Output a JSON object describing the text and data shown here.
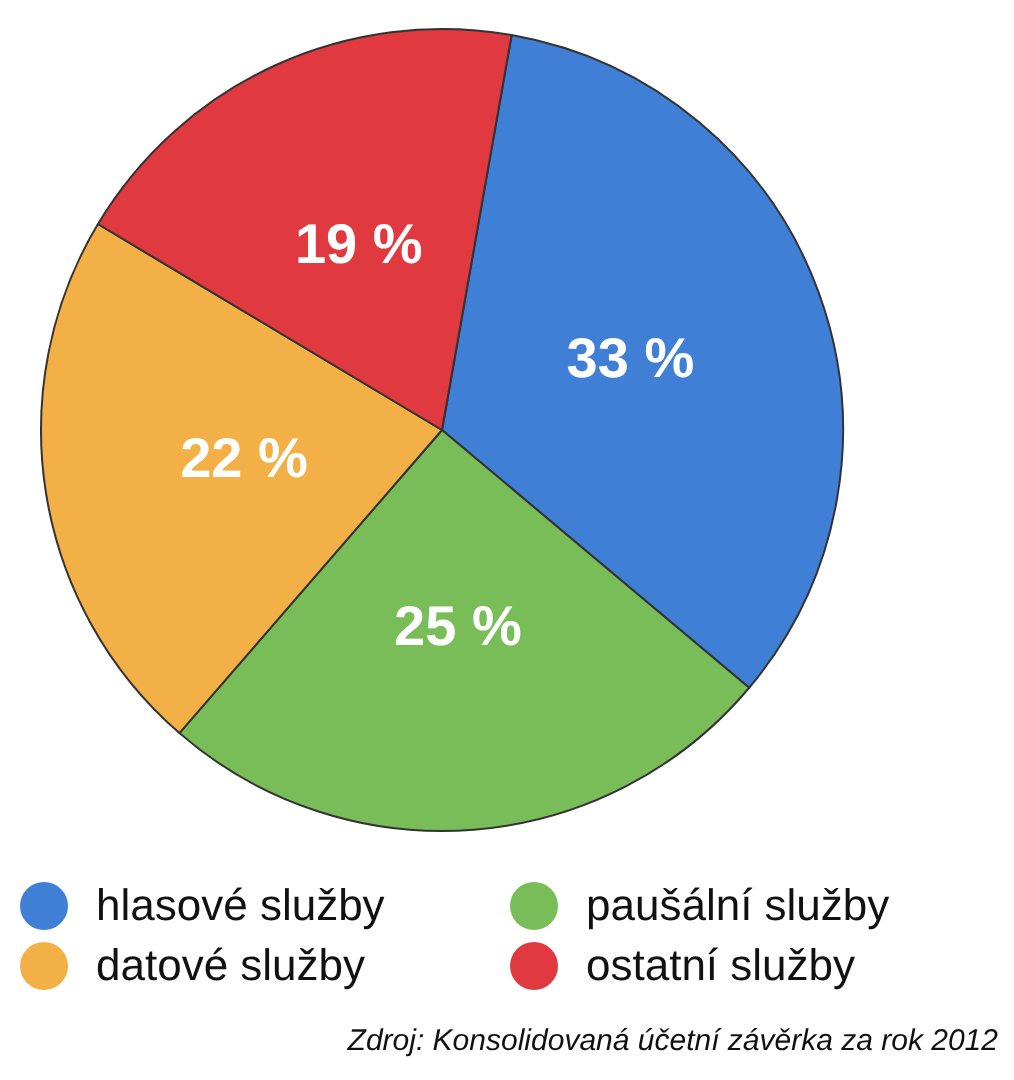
{
  "chart_data": {
    "type": "pie",
    "categories": [
      "hlasové služby",
      "paušální služby",
      "datové služby",
      "ostatní služby"
    ],
    "values": [
      33,
      25,
      22,
      19
    ],
    "colors": [
      "#3f7fd6",
      "#78bd58",
      "#f2b046",
      "#e0393f"
    ],
    "value_labels": [
      "33 %",
      "25 %",
      "22 %",
      "19 %"
    ],
    "legend": "bottom",
    "annotations": [
      "Zdroj: Konsolidovaná účetní závěrka za rok 2012"
    ]
  }
}
